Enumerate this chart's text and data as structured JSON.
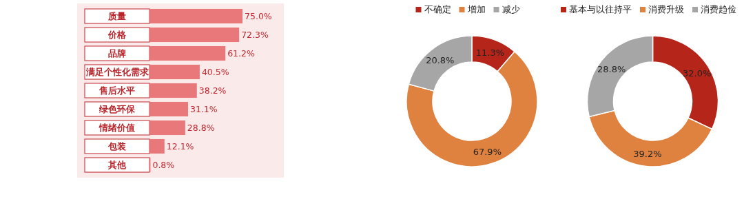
{
  "chart_data": [
    {
      "type": "bar",
      "orientation": "horizontal",
      "color": "#e8787a",
      "categories": [
        "质量",
        "价格",
        "品牌",
        "满足个性化需求",
        "售后水平",
        "绿色环保",
        "情绪价值",
        "包装",
        "其他"
      ],
      "values": [
        75.0,
        72.3,
        61.2,
        40.5,
        38.2,
        31.1,
        28.8,
        12.1,
        0.8
      ],
      "value_labels": [
        "75.0%",
        "72.3%",
        "61.2%",
        "40.5%",
        "38.2%",
        "31.1%",
        "28.8%",
        "12.1%",
        "0.8%"
      ]
    },
    {
      "type": "donut",
      "legend": "top",
      "categories": [
        "不确定",
        "增加",
        "减少"
      ],
      "values": [
        11.3,
        67.9,
        20.8
      ],
      "colors": [
        "#b52519",
        "#e0823f",
        "#a6a6a6"
      ],
      "value_labels": [
        "11.3%",
        "67.9%",
        "20.8%"
      ]
    },
    {
      "type": "donut",
      "legend": "top",
      "categories": [
        "基本与以往持平",
        "消费升级",
        "消费趋俭"
      ],
      "values": [
        32.0,
        39.2,
        28.8
      ],
      "colors": [
        "#b52519",
        "#e0823f",
        "#a6a6a6"
      ],
      "value_labels": [
        "32.0%",
        "39.2%",
        "28.8%"
      ]
    }
  ]
}
